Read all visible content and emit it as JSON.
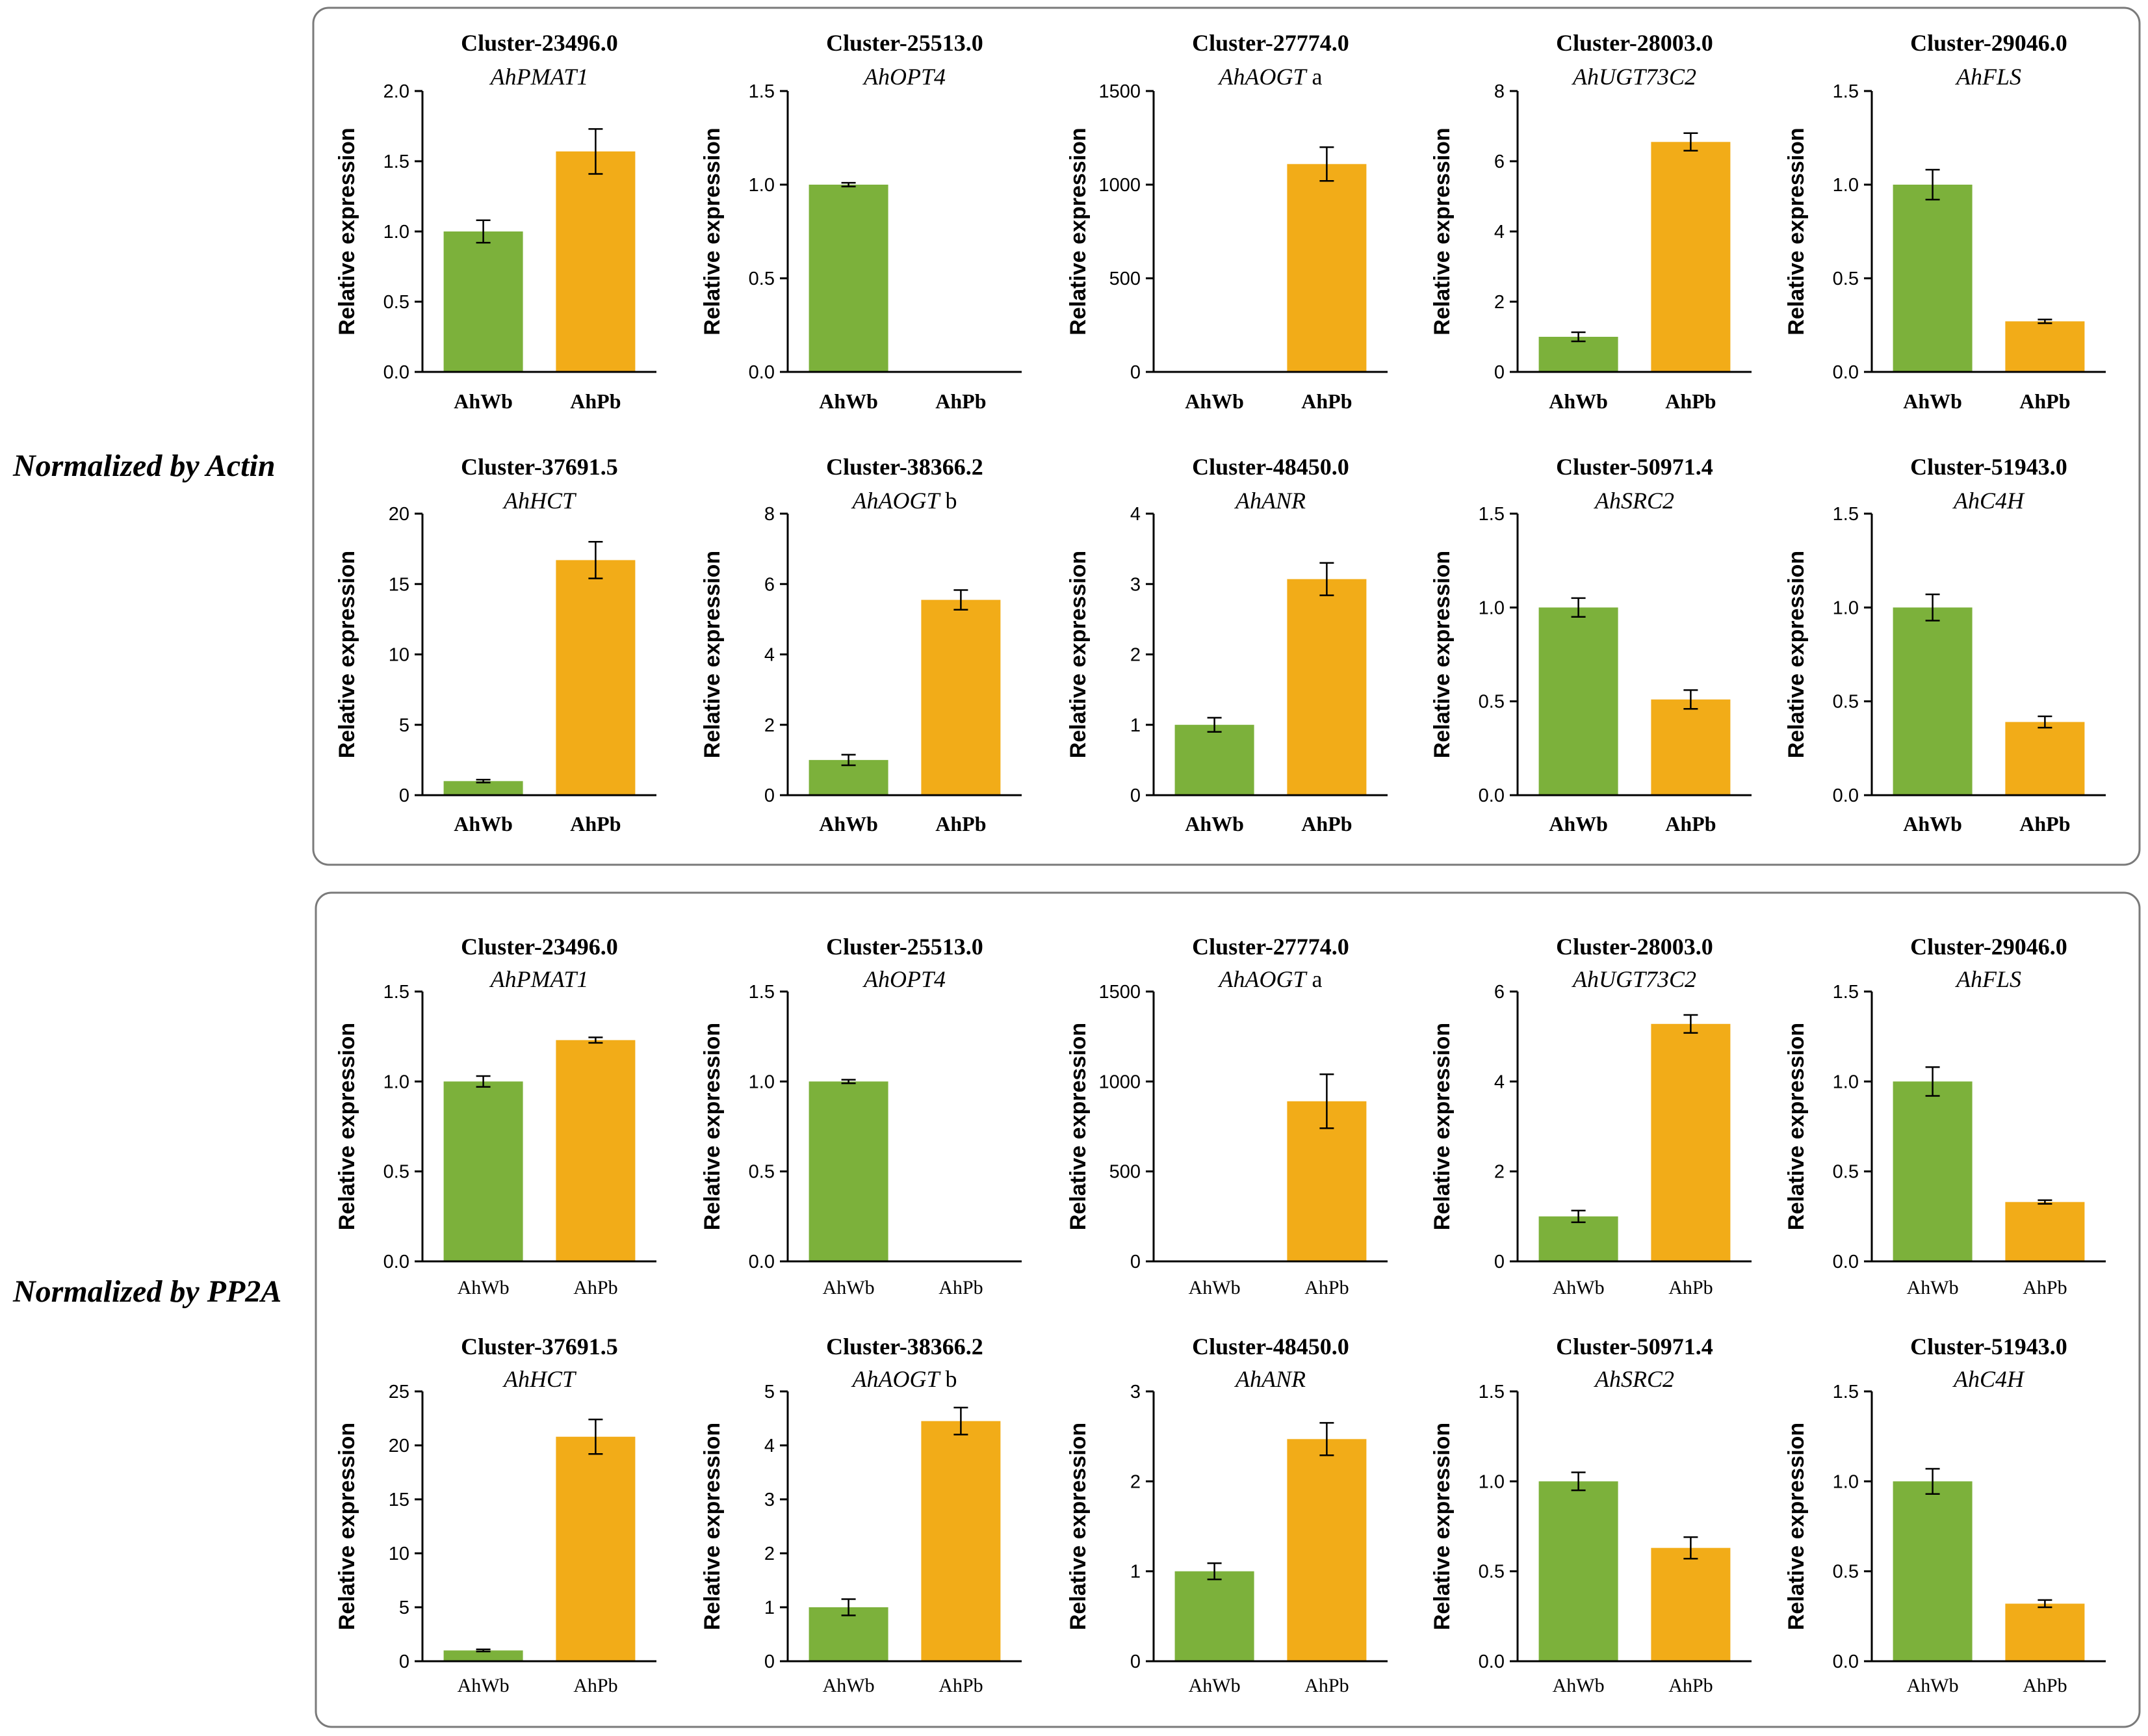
{
  "figure": {
    "colors": {
      "AhWb": "#7cb13b",
      "AhPb": "#f2ac18",
      "frame": "#7a7a7a"
    },
    "sections": [
      {
        "label": "Normalized by Actin",
        "chart_data": [
          {
            "type": "bar",
            "cluster": "Cluster-23496.0",
            "gene": "AhPMAT1",
            "gene_suffix": "",
            "ylabel": "Relative expression",
            "ylim": [
              0,
              2.0
            ],
            "yticks": [
              "0.0",
              "0.5",
              "1.0",
              "1.5",
              "2.0"
            ],
            "categories": [
              "AhWb",
              "AhPb"
            ],
            "values": [
              1.0,
              1.57
            ],
            "errors": [
              0.08,
              0.16
            ]
          },
          {
            "type": "bar",
            "cluster": "Cluster-25513.0",
            "gene": "AhOPT4",
            "gene_suffix": "",
            "ylabel": "Relative expression",
            "ylim": [
              0,
              1.5
            ],
            "yticks": [
              "0.0",
              "0.5",
              "1.0",
              "1.5"
            ],
            "categories": [
              "AhWb",
              "AhPb"
            ],
            "values": [
              1.0,
              0.0
            ],
            "errors": [
              0.01,
              0.0
            ]
          },
          {
            "type": "bar",
            "cluster": "Cluster-27774.0",
            "gene": "AhAOGT",
            "gene_suffix": " a",
            "ylabel": "Relative expression",
            "ylim": [
              0,
              1500
            ],
            "yticks": [
              "0",
              "500",
              "1000",
              "1500"
            ],
            "categories": [
              "AhWb",
              "AhPb"
            ],
            "values": [
              0,
              1110
            ],
            "errors": [
              0,
              90
            ]
          },
          {
            "type": "bar",
            "cluster": "Cluster-28003.0",
            "gene": "AhUGT73C2",
            "gene_suffix": "",
            "ylabel": "Relative expression",
            "ylim": [
              0,
              8
            ],
            "yticks": [
              "0",
              "2",
              "4",
              "6",
              "8"
            ],
            "categories": [
              "AhWb",
              "AhPb"
            ],
            "values": [
              1.0,
              6.55
            ],
            "errors": [
              0.13,
              0.25
            ]
          },
          {
            "type": "bar",
            "cluster": "Cluster-29046.0",
            "gene": "AhFLS",
            "gene_suffix": "",
            "ylabel": "Relative expression",
            "ylim": [
              0,
              1.5
            ],
            "yticks": [
              "0.0",
              "0.5",
              "1.0",
              "1.5"
            ],
            "categories": [
              "AhWb",
              "AhPb"
            ],
            "values": [
              1.0,
              0.27
            ],
            "errors": [
              0.08,
              0.01
            ]
          },
          {
            "type": "bar",
            "cluster": "Cluster-37691.5",
            "gene": "AhHCT",
            "gene_suffix": "",
            "ylabel": "Relative expression",
            "ylim": [
              0,
              20
            ],
            "yticks": [
              "0",
              "5",
              "10",
              "15",
              "20"
            ],
            "categories": [
              "AhWb",
              "AhPb"
            ],
            "values": [
              1.0,
              16.7
            ],
            "errors": [
              0.1,
              1.3
            ]
          },
          {
            "type": "bar",
            "cluster": "Cluster-38366.2",
            "gene": "AhAOGT",
            "gene_suffix": " b",
            "ylabel": "Relative expression",
            "ylim": [
              0,
              8
            ],
            "yticks": [
              "0",
              "2",
              "4",
              "6",
              "8"
            ],
            "categories": [
              "AhWb",
              "AhPb"
            ],
            "values": [
              1.0,
              5.55
            ],
            "errors": [
              0.15,
              0.28
            ]
          },
          {
            "type": "bar",
            "cluster": "Cluster-48450.0",
            "gene": "AhANR",
            "gene_suffix": "",
            "ylabel": "Relative expression",
            "ylim": [
              0,
              4
            ],
            "yticks": [
              "0",
              "1",
              "2",
              "3",
              "4"
            ],
            "categories": [
              "AhWb",
              "AhPb"
            ],
            "values": [
              1.0,
              3.07
            ],
            "errors": [
              0.1,
              0.23
            ]
          },
          {
            "type": "bar",
            "cluster": "Cluster-50971.4",
            "gene": "AhSRC2",
            "gene_suffix": "",
            "ylabel": "Relative expression",
            "ylim": [
              0,
              1.5
            ],
            "yticks": [
              "0.0",
              "0.5",
              "1.0",
              "1.5"
            ],
            "categories": [
              "AhWb",
              "AhPb"
            ],
            "values": [
              1.0,
              0.51
            ],
            "errors": [
              0.05,
              0.05
            ]
          },
          {
            "type": "bar",
            "cluster": "Cluster-51943.0",
            "gene": "AhC4H",
            "gene_suffix": "",
            "ylabel": "Relative expression",
            "ylim": [
              0,
              1.5
            ],
            "yticks": [
              "0.0",
              "0.5",
              "1.0",
              "1.5"
            ],
            "categories": [
              "AhWb",
              "AhPb"
            ],
            "values": [
              1.0,
              0.39
            ],
            "errors": [
              0.07,
              0.03
            ]
          }
        ]
      },
      {
        "label": "Normalized by PP2A",
        "chart_data": [
          {
            "type": "bar",
            "cluster": "Cluster-23496.0",
            "gene": "AhPMAT1",
            "gene_suffix": "",
            "ylabel": "Relative expression",
            "ylim": [
              0,
              1.5
            ],
            "yticks": [
              "0.0",
              "0.5",
              "1.0",
              "1.5"
            ],
            "categories": [
              "AhWb",
              "AhPb"
            ],
            "values": [
              1.0,
              1.23
            ],
            "errors": [
              0.03,
              0.015
            ]
          },
          {
            "type": "bar",
            "cluster": "Cluster-25513.0",
            "gene": "AhOPT4",
            "gene_suffix": "",
            "ylabel": "Relative expression",
            "ylim": [
              0,
              1.5
            ],
            "yticks": [
              "0.0",
              "0.5",
              "1.0",
              "1.5"
            ],
            "categories": [
              "AhWb",
              "AhPb"
            ],
            "values": [
              1.0,
              0.0
            ],
            "errors": [
              0.01,
              0.0
            ]
          },
          {
            "type": "bar",
            "cluster": "Cluster-27774.0",
            "gene": "AhAOGT",
            "gene_suffix": " a",
            "ylabel": "Relative expression",
            "ylim": [
              0,
              1500
            ],
            "yticks": [
              "0",
              "500",
              "1000",
              "1500"
            ],
            "categories": [
              "AhWb",
              "AhPb"
            ],
            "values": [
              0,
              890
            ],
            "errors": [
              0,
              150
            ]
          },
          {
            "type": "bar",
            "cluster": "Cluster-28003.0",
            "gene": "AhUGT73C2",
            "gene_suffix": "",
            "ylabel": "Relative expression",
            "ylim": [
              0,
              6
            ],
            "yticks": [
              "0",
              "2",
              "4",
              "6"
            ],
            "categories": [
              "AhWb",
              "AhPb"
            ],
            "values": [
              1.0,
              5.28
            ],
            "errors": [
              0.13,
              0.2
            ]
          },
          {
            "type": "bar",
            "cluster": "Cluster-29046.0",
            "gene": "AhFLS",
            "gene_suffix": "",
            "ylabel": "Relative expression",
            "ylim": [
              0,
              1.5
            ],
            "yticks": [
              "0.0",
              "0.5",
              "1.0",
              "1.5"
            ],
            "categories": [
              "AhWb",
              "AhPb"
            ],
            "values": [
              1.0,
              0.33
            ],
            "errors": [
              0.08,
              0.01
            ]
          },
          {
            "type": "bar",
            "cluster": "Cluster-37691.5",
            "gene": "AhHCT",
            "gene_suffix": "",
            "ylabel": "Relative expression",
            "ylim": [
              0,
              25
            ],
            "yticks": [
              "0",
              "5",
              "10",
              "15",
              "20",
              "25"
            ],
            "categories": [
              "AhWb",
              "AhPb"
            ],
            "values": [
              1.0,
              20.8
            ],
            "errors": [
              0.1,
              1.6
            ]
          },
          {
            "type": "bar",
            "cluster": "Cluster-38366.2",
            "gene": "AhAOGT",
            "gene_suffix": " b",
            "ylabel": "Relative expression",
            "ylim": [
              0,
              5
            ],
            "yticks": [
              "0",
              "1",
              "2",
              "3",
              "4",
              "5"
            ],
            "categories": [
              "AhWb",
              "AhPb"
            ],
            "values": [
              1.0,
              4.45
            ],
            "errors": [
              0.15,
              0.25
            ]
          },
          {
            "type": "bar",
            "cluster": "Cluster-48450.0",
            "gene": "AhANR",
            "gene_suffix": "",
            "ylabel": "Relative expression",
            "ylim": [
              0,
              3
            ],
            "yticks": [
              "0",
              "1",
              "2",
              "3"
            ],
            "categories": [
              "AhWb",
              "AhPb"
            ],
            "values": [
              1.0,
              2.47
            ],
            "errors": [
              0.09,
              0.18
            ]
          },
          {
            "type": "bar",
            "cluster": "Cluster-50971.4",
            "gene": "AhSRC2",
            "gene_suffix": "",
            "ylabel": "Relative expression",
            "ylim": [
              0,
              1.5
            ],
            "yticks": [
              "0.0",
              "0.5",
              "1.0",
              "1.5"
            ],
            "categories": [
              "AhWb",
              "AhPb"
            ],
            "values": [
              1.0,
              0.63
            ],
            "errors": [
              0.05,
              0.06
            ]
          },
          {
            "type": "bar",
            "cluster": "Cluster-51943.0",
            "gene": "AhC4H",
            "gene_suffix": "",
            "ylabel": "Relative expression",
            "ylim": [
              0,
              1.5
            ],
            "yticks": [
              "0.0",
              "0.5",
              "1.0",
              "1.5"
            ],
            "categories": [
              "AhWb",
              "AhPb"
            ],
            "values": [
              1.0,
              0.32
            ],
            "errors": [
              0.07,
              0.02
            ]
          }
        ]
      }
    ]
  }
}
